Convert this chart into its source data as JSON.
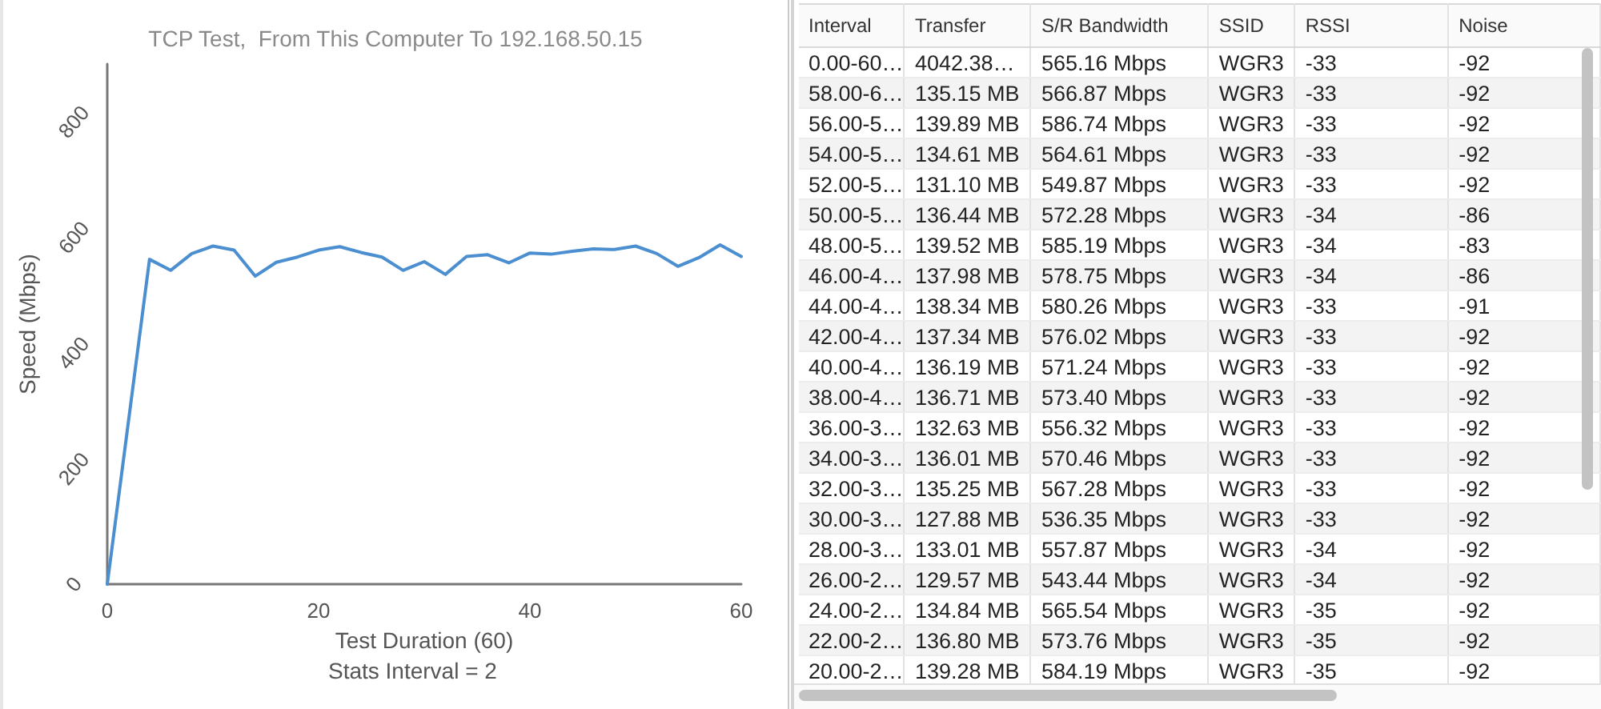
{
  "chart_data": [
    {
      "type": "line",
      "title": "TCP Test,  From This Computer To 192.168.50.15",
      "xlabel": "Test Duration (60)",
      "ylabel": "Speed (Mbps)",
      "annotations": [
        "Stats Interval = 2"
      ],
      "x": [
        0,
        4,
        6,
        8,
        10,
        12,
        14,
        16,
        18,
        20,
        22,
        24,
        26,
        28,
        30,
        32,
        34,
        36,
        38,
        40,
        42,
        44,
        46,
        48,
        50,
        52,
        54,
        56,
        58,
        60
      ],
      "values": [
        0,
        562,
        543,
        572,
        585,
        578,
        533,
        557,
        566,
        578,
        584,
        574,
        566,
        543,
        558,
        536,
        567,
        570,
        556,
        573,
        571,
        576,
        580,
        579,
        585,
        572,
        550,
        565,
        587,
        567
      ],
      "color": "#4b8fd0",
      "xlim": [
        0,
        60
      ],
      "xticks": [
        0,
        20,
        40,
        60
      ],
      "ylim": [
        0,
        900
      ],
      "yticks": [
        0,
        200,
        400,
        600,
        800
      ],
      "grid": false,
      "marker": "none",
      "line_style": "solid"
    },
    {
      "type": "other",
      "categories": [
        "Interval",
        "Transfer",
        "S/R Bandwidth",
        "SSID",
        "RSSI",
        "Noise"
      ],
      "cell_labels": [
        [
          "0.00-60…",
          "4042.38…",
          "565.16 Mbps",
          "WGR3",
          "-33",
          "-92"
        ],
        [
          "58.00-6…",
          "135.15 MB",
          "566.87 Mbps",
          "WGR3",
          "-33",
          "-92"
        ],
        [
          "56.00-5…",
          "139.89 MB",
          "586.74 Mbps",
          "WGR3",
          "-33",
          "-92"
        ],
        [
          "54.00-5…",
          "134.61 MB",
          "564.61 Mbps",
          "WGR3",
          "-33",
          "-92"
        ],
        [
          "52.00-5…",
          "131.10 MB",
          "549.87 Mbps",
          "WGR3",
          "-33",
          "-92"
        ],
        [
          "50.00-5…",
          "136.44 MB",
          "572.28 Mbps",
          "WGR3",
          "-34",
          "-86"
        ],
        [
          "48.00-5…",
          "139.52 MB",
          "585.19 Mbps",
          "WGR3",
          "-34",
          "-83"
        ],
        [
          "46.00-4…",
          "137.98 MB",
          "578.75 Mbps",
          "WGR3",
          "-34",
          "-86"
        ],
        [
          "44.00-4…",
          "138.34 MB",
          "580.26 Mbps",
          "WGR3",
          "-33",
          "-91"
        ],
        [
          "42.00-4…",
          "137.34 MB",
          "576.02 Mbps",
          "WGR3",
          "-33",
          "-92"
        ],
        [
          "40.00-4…",
          "136.19 MB",
          "571.24 Mbps",
          "WGR3",
          "-33",
          "-92"
        ],
        [
          "38.00-4…",
          "136.71 MB",
          "573.40 Mbps",
          "WGR3",
          "-33",
          "-92"
        ],
        [
          "36.00-3…",
          "132.63 MB",
          "556.32 Mbps",
          "WGR3",
          "-33",
          "-92"
        ],
        [
          "34.00-3…",
          "136.01 MB",
          "570.46 Mbps",
          "WGR3",
          "-33",
          "-92"
        ],
        [
          "32.00-3…",
          "135.25 MB",
          "567.28 Mbps",
          "WGR3",
          "-33",
          "-92"
        ],
        [
          "30.00-3…",
          "127.88 MB",
          "536.35 Mbps",
          "WGR3",
          "-33",
          "-92"
        ],
        [
          "28.00-3…",
          "133.01 MB",
          "557.87 Mbps",
          "WGR3",
          "-34",
          "-92"
        ],
        [
          "26.00-2…",
          "129.57 MB",
          "543.44 Mbps",
          "WGR3",
          "-34",
          "-92"
        ],
        [
          "24.00-2…",
          "134.84 MB",
          "565.54 Mbps",
          "WGR3",
          "-35",
          "-92"
        ],
        [
          "22.00-2…",
          "136.80 MB",
          "573.76 Mbps",
          "WGR3",
          "-35",
          "-92"
        ],
        [
          "20.00-2…",
          "139.28 MB",
          "584.19 Mbps",
          "WGR3",
          "-35",
          "-92"
        ]
      ]
    }
  ]
}
